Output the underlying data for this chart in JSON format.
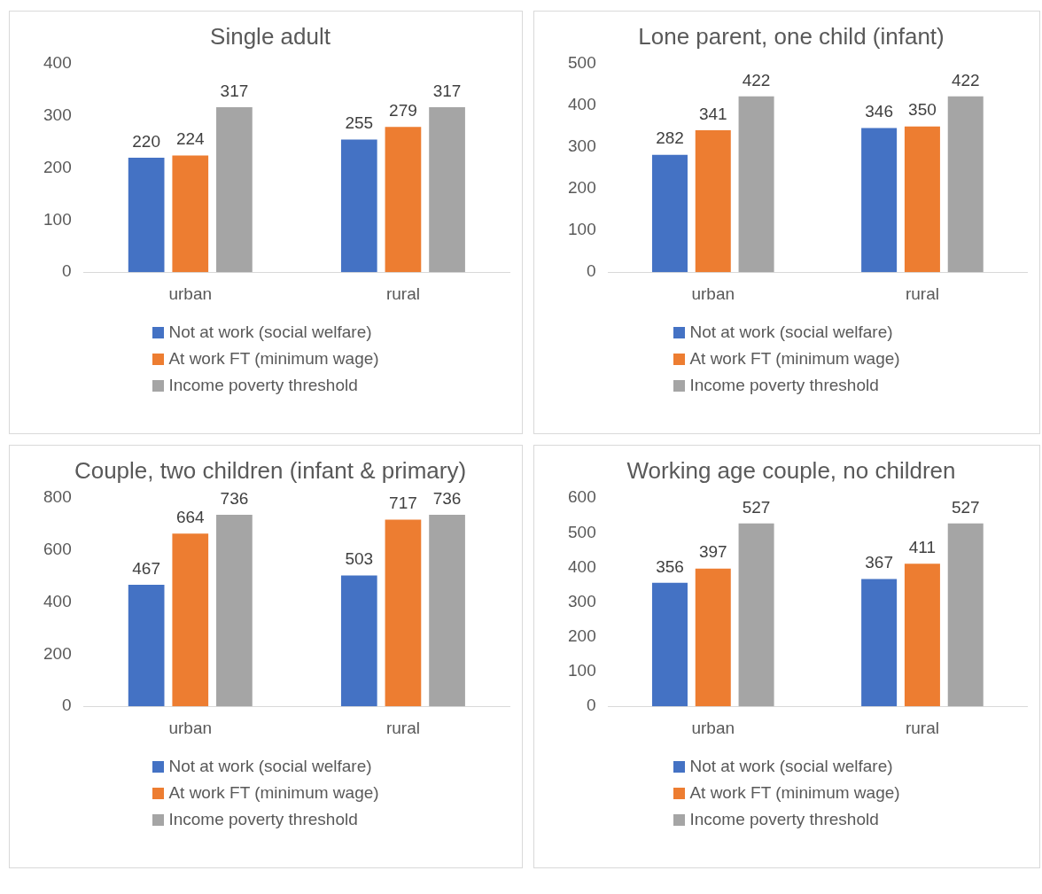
{
  "chart_data": [
    {
      "type": "bar",
      "title": "Single adult",
      "categories": [
        "urban",
        "rural"
      ],
      "ylim": [
        0,
        400
      ],
      "yticks": [
        0,
        100,
        200,
        300,
        400
      ],
      "grid": false,
      "legend": "bottom",
      "data_labels": true,
      "series": [
        {
          "name": "Not at work (social welfare)",
          "color": "#4472c4",
          "values": [
            220,
            255
          ]
        },
        {
          "name": "At work  FT (minimum wage)",
          "color": "#ed7d31",
          "values": [
            224,
            279
          ]
        },
        {
          "name": "Income poverty threshold",
          "color": "#a5a5a5",
          "values": [
            317,
            317
          ]
        }
      ]
    },
    {
      "type": "bar",
      "title": "Lone parent, one child (infant)",
      "categories": [
        "urban",
        "rural"
      ],
      "ylim": [
        0,
        500
      ],
      "yticks": [
        0,
        100,
        200,
        300,
        400,
        500
      ],
      "grid": false,
      "legend": "bottom",
      "data_labels": true,
      "series": [
        {
          "name": "Not at work (social welfare)",
          "color": "#4472c4",
          "values": [
            282,
            346
          ]
        },
        {
          "name": "At work FT (minimum wage)",
          "color": "#ed7d31",
          "values": [
            341,
            350
          ]
        },
        {
          "name": "Income poverty threshold",
          "color": "#a5a5a5",
          "values": [
            422,
            422
          ]
        }
      ]
    },
    {
      "type": "bar",
      "title": "Couple, two children (infant & primary)",
      "categories": [
        "urban",
        "rural"
      ],
      "ylim": [
        0,
        800
      ],
      "yticks": [
        0,
        200,
        400,
        600,
        800
      ],
      "grid": false,
      "legend": "bottom",
      "data_labels": true,
      "series": [
        {
          "name": "Not at work (social welfare)",
          "color": "#4472c4",
          "values": [
            467,
            503
          ]
        },
        {
          "name": "At work FT (minimum wage)",
          "color": "#ed7d31",
          "values": [
            664,
            717
          ]
        },
        {
          "name": "Income poverty threshold",
          "color": "#a5a5a5",
          "values": [
            736,
            736
          ]
        }
      ]
    },
    {
      "type": "bar",
      "title": "Working age couple, no children",
      "categories": [
        "urban",
        "rural"
      ],
      "ylim": [
        0,
        600
      ],
      "yticks": [
        0,
        100,
        200,
        300,
        400,
        500,
        600
      ],
      "grid": false,
      "legend": "bottom",
      "data_labels": true,
      "series": [
        {
          "name": "Not at work (social welfare)",
          "color": "#4472c4",
          "values": [
            356,
            367
          ]
        },
        {
          "name": "At work FT (minimum wage)",
          "color": "#ed7d31",
          "values": [
            397,
            411
          ]
        },
        {
          "name": "Income poverty threshold",
          "color": "#a5a5a5",
          "values": [
            527,
            527
          ]
        }
      ]
    }
  ]
}
